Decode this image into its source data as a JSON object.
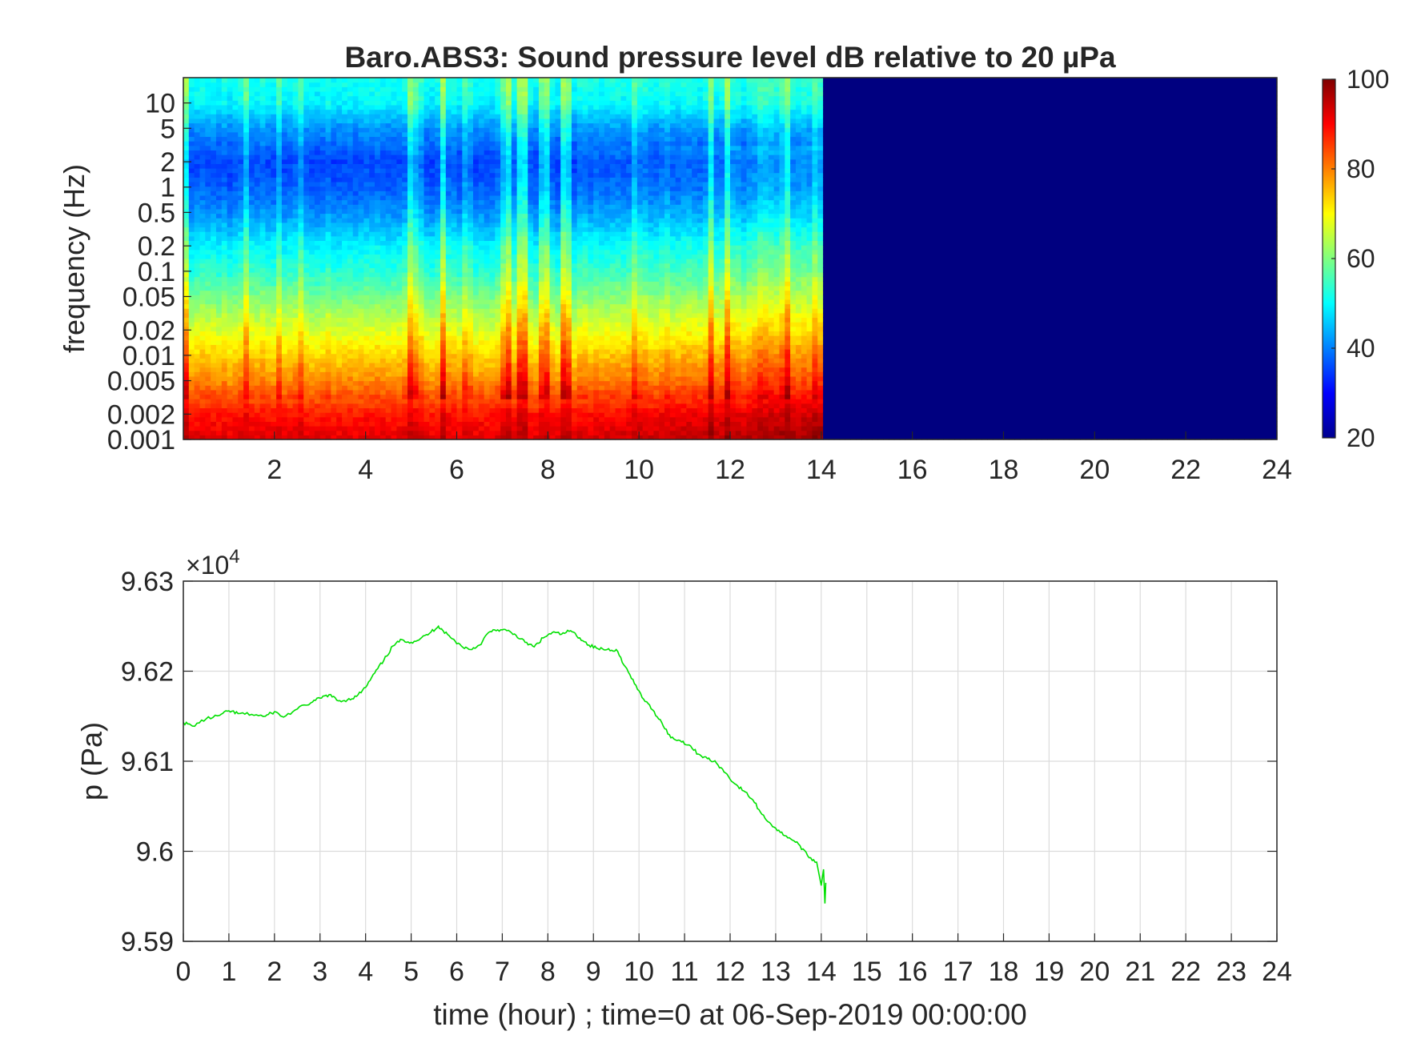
{
  "chart_data": [
    {
      "type": "heatmap",
      "title": "Baro.ABS3: Sound pressure level dB relative to 20 µPa",
      "ylabel": "frequency (Hz)",
      "xlabel": "",
      "xlim": [
        0,
        24
      ],
      "x_ticks": [
        "2",
        "4",
        "6",
        "8",
        "10",
        "12",
        "14",
        "16",
        "18",
        "20",
        "22",
        "24"
      ],
      "y_ticks": [
        "10",
        "5",
        "2",
        "1",
        "0.5",
        "0.2",
        "0.1",
        "0.05",
        "0.02",
        "0.01",
        "0.005",
        "0.002",
        "0.001"
      ],
      "y_tick_values": [
        10,
        5,
        2,
        1,
        0.5,
        0.2,
        0.1,
        0.05,
        0.02,
        0.01,
        0.005,
        0.002,
        0.001
      ],
      "ylim": [
        0.001,
        20
      ],
      "y_scale": "log",
      "data_end_hour": 14.1,
      "colorbar": {
        "min": 20,
        "max": 100,
        "ticks": [
          "20",
          "40",
          "60",
          "80",
          "100"
        ],
        "tick_values": [
          20,
          40,
          60,
          80,
          100
        ],
        "colormap": "jet"
      },
      "level_profile_db": {
        "frequency_hz": [
          0.001,
          0.002,
          0.005,
          0.01,
          0.02,
          0.05,
          0.1,
          0.2,
          0.5,
          1,
          2,
          5,
          10,
          20
        ],
        "typical_level_db": [
          92,
          88,
          78,
          72,
          66,
          58,
          52,
          48,
          40,
          36,
          34,
          40,
          48,
          50
        ]
      },
      "empty_level_db": 20
    },
    {
      "type": "line",
      "ylabel": "p (Pa)",
      "xlabel": "time (hour) ; time=0 at 06-Sep-2019 00:00:00",
      "exponent_label": "×10",
      "exponent_power": "4",
      "xlim": [
        0,
        24
      ],
      "ylim": [
        9.59,
        9.63
      ],
      "grid": true,
      "x_ticks": [
        "0",
        "1",
        "2",
        "3",
        "4",
        "5",
        "6",
        "7",
        "8",
        "9",
        "10",
        "11",
        "12",
        "13",
        "14",
        "15",
        "16",
        "17",
        "18",
        "19",
        "20",
        "21",
        "22",
        "23",
        "24"
      ],
      "y_ticks": [
        "9.59",
        "9.6",
        "9.61",
        "9.62",
        "9.63"
      ],
      "y_tick_values": [
        9.59,
        9.6,
        9.61,
        9.62,
        9.63
      ],
      "series": [
        {
          "color": "#00e000",
          "x": [
            0,
            0.2,
            0.5,
            0.8,
            1.0,
            1.2,
            1.5,
            1.8,
            2.0,
            2.2,
            2.5,
            2.8,
            3.0,
            3.2,
            3.4,
            3.6,
            3.8,
            4.0,
            4.2,
            4.4,
            4.6,
            4.8,
            5.0,
            5.2,
            5.4,
            5.6,
            5.7,
            5.9,
            6.1,
            6.3,
            6.5,
            6.7,
            6.9,
            7.1,
            7.3,
            7.5,
            7.7,
            7.9,
            8.1,
            8.3,
            8.5,
            8.7,
            8.9,
            9.1,
            9.3,
            9.5,
            9.7,
            9.9,
            10.1,
            10.3,
            10.5,
            10.7,
            10.9,
            11.1,
            11.3,
            11.5,
            11.7,
            11.9,
            12.1,
            12.3,
            12.5,
            12.7,
            12.9,
            13.1,
            13.3,
            13.5,
            13.7,
            13.9,
            14.0,
            14.05,
            14.08,
            14.1
          ],
          "y": [
            9.6143,
            9.6139,
            9.6147,
            9.6151,
            9.6156,
            9.6153,
            9.6152,
            9.615,
            9.6155,
            9.6149,
            9.6158,
            9.6165,
            9.617,
            9.6174,
            9.6167,
            9.6168,
            9.6172,
            9.6182,
            9.6198,
            9.6212,
            9.6228,
            9.6235,
            9.6232,
            9.6236,
            9.6242,
            9.625,
            9.6245,
            9.6236,
            9.6228,
            9.6224,
            9.6229,
            9.6243,
            9.6246,
            9.6245,
            9.624,
            9.6232,
            9.6227,
            9.6237,
            9.6243,
            9.6241,
            9.6245,
            9.6237,
            9.6229,
            9.6225,
            9.6224,
            9.6224,
            9.6205,
            9.6186,
            9.6169,
            9.6157,
            9.6143,
            9.6126,
            9.6123,
            9.6118,
            9.6108,
            9.6103,
            9.6098,
            9.6087,
            9.6075,
            9.6067,
            9.6057,
            9.6041,
            9.603,
            9.6021,
            9.6015,
            9.6008,
            9.5995,
            9.5988,
            9.5962,
            9.598,
            9.5942,
            9.5965
          ]
        }
      ]
    }
  ]
}
